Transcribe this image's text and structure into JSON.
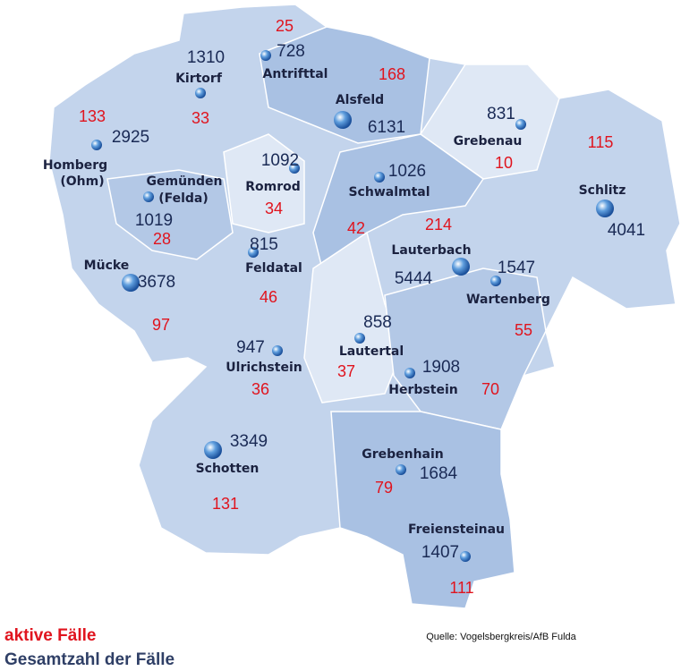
{
  "municipalities": [
    {
      "name": [
        "Antrifttal"
      ],
      "total": 728,
      "active": 25
    },
    {
      "name": [
        "Kirtorf"
      ],
      "total": 1310,
      "active": 33
    },
    {
      "name": [
        "Alsfeld"
      ],
      "total": 6131,
      "active": 168
    },
    {
      "name": [
        "Grebenau"
      ],
      "total": 831,
      "active": 10
    },
    {
      "name": [
        "Schlitz"
      ],
      "total": 4041,
      "active": 115
    },
    {
      "name": [
        "Homberg",
        "(Ohm)"
      ],
      "total": 2925,
      "active": 133
    },
    {
      "name": [
        "Gemünden",
        "(Felda)"
      ],
      "total": 1019,
      "active": 28
    },
    {
      "name": [
        "Romrod"
      ],
      "total": 1092,
      "active": 34
    },
    {
      "name": [
        "Schwalmtal"
      ],
      "total": 1026,
      "active": 42
    },
    {
      "name": [
        "Lauterbach"
      ],
      "total": 5444,
      "active": 214
    },
    {
      "name": [
        "Wartenberg"
      ],
      "total": 1547,
      "active": 55
    },
    {
      "name": [
        "Feldatal"
      ],
      "total": 815,
      "active": 46
    },
    {
      "name": [
        "Mücke"
      ],
      "total": 3678,
      "active": 97
    },
    {
      "name": [
        "Lautertal"
      ],
      "total": 858,
      "active": 37
    },
    {
      "name": [
        "Ulrichstein"
      ],
      "total": 947,
      "active": 36
    },
    {
      "name": [
        "Herbstein"
      ],
      "total": 1908,
      "active": 70
    },
    {
      "name": [
        "Schotten"
      ],
      "total": 3349,
      "active": 131
    },
    {
      "name": [
        "Grebenhain"
      ],
      "total": 1684,
      "active": 79
    },
    {
      "name": [
        "Freiensteinau"
      ],
      "total": 1407,
      "active": 111
    }
  ],
  "legend": {
    "active": "aktive Fälle",
    "total": "Gesamtzahl der Fälle"
  },
  "source": "Quelle: Vogelsbergkreis/AfB Fulda"
}
